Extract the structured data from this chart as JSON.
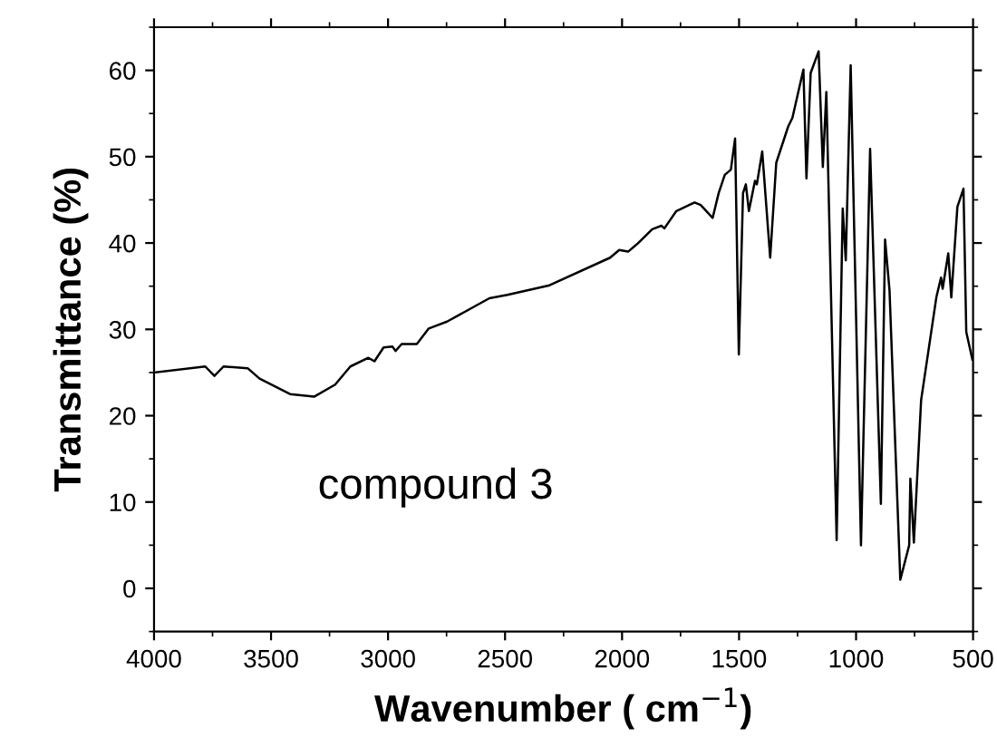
{
  "chart_data": {
    "type": "line",
    "xlabel": "Wavenumber ( cm$^{−1}$)",
    "ylabel": "Transmittance (%)",
    "annotations": [
      "compound 3"
    ],
    "series": [
      {
        "color": "#000000",
        "x": [
          4000,
          3781,
          3742,
          3703,
          3600,
          3549,
          3419,
          3316,
          3226,
          3161,
          3084,
          3058,
          3019,
          2981,
          2968,
          2942,
          2877,
          2826,
          2748,
          2567,
          2490,
          2310,
          2051,
          2012,
          1974,
          1935,
          1871,
          1832,
          1819,
          1768,
          1690,
          1664,
          1613,
          1587,
          1561,
          1535,
          1517,
          1501,
          1483,
          1471,
          1458,
          1432,
          1424,
          1401,
          1367,
          1341,
          1290,
          1272,
          1225,
          1212,
          1194,
          1160,
          1142,
          1127,
          1083,
          1057,
          1044,
          1023,
          979,
          940,
          894,
          876,
          857,
          811,
          773,
          768,
          753,
          722,
          657,
          637,
          630,
          606,
          593,
          567,
          541,
          529,
          503
        ],
        "values": [
          25.0,
          25.7,
          24.6,
          25.7,
          25.5,
          24.3,
          22.5,
          22.2,
          23.6,
          25.7,
          26.7,
          26.3,
          27.9,
          28.0,
          27.5,
          28.3,
          28.3,
          30.1,
          30.9,
          33.6,
          34.0,
          35.1,
          38.3,
          39.2,
          39.0,
          39.9,
          41.6,
          42.0,
          41.7,
          43.7,
          44.7,
          44.4,
          42.9,
          45.8,
          47.9,
          48.5,
          52.1,
          27.1,
          45.8,
          46.8,
          43.7,
          47.2,
          46.8,
          50.6,
          38.3,
          49.3,
          53.5,
          54.5,
          60.1,
          47.5,
          59.7,
          62.2,
          48.8,
          57.5,
          5.6,
          44.0,
          38.0,
          60.6,
          5.0,
          50.9,
          9.8,
          40.4,
          34.5,
          1.0,
          5.0,
          12.7,
          5.3,
          21.8,
          33.7,
          36.0,
          34.7,
          38.8,
          33.7,
          44.2,
          46.3,
          29.7,
          26.5
        ]
      }
    ],
    "xlim": [
      4000,
      500
    ],
    "xticks": [
      4000,
      3500,
      3000,
      2500,
      2000,
      1500,
      1000,
      500
    ],
    "ylim": [
      -5,
      65
    ],
    "yticks": [
      0,
      10,
      20,
      30,
      40,
      50,
      60
    ],
    "grid": false,
    "legend": false,
    "marker": "none",
    "line_style": "solid"
  }
}
